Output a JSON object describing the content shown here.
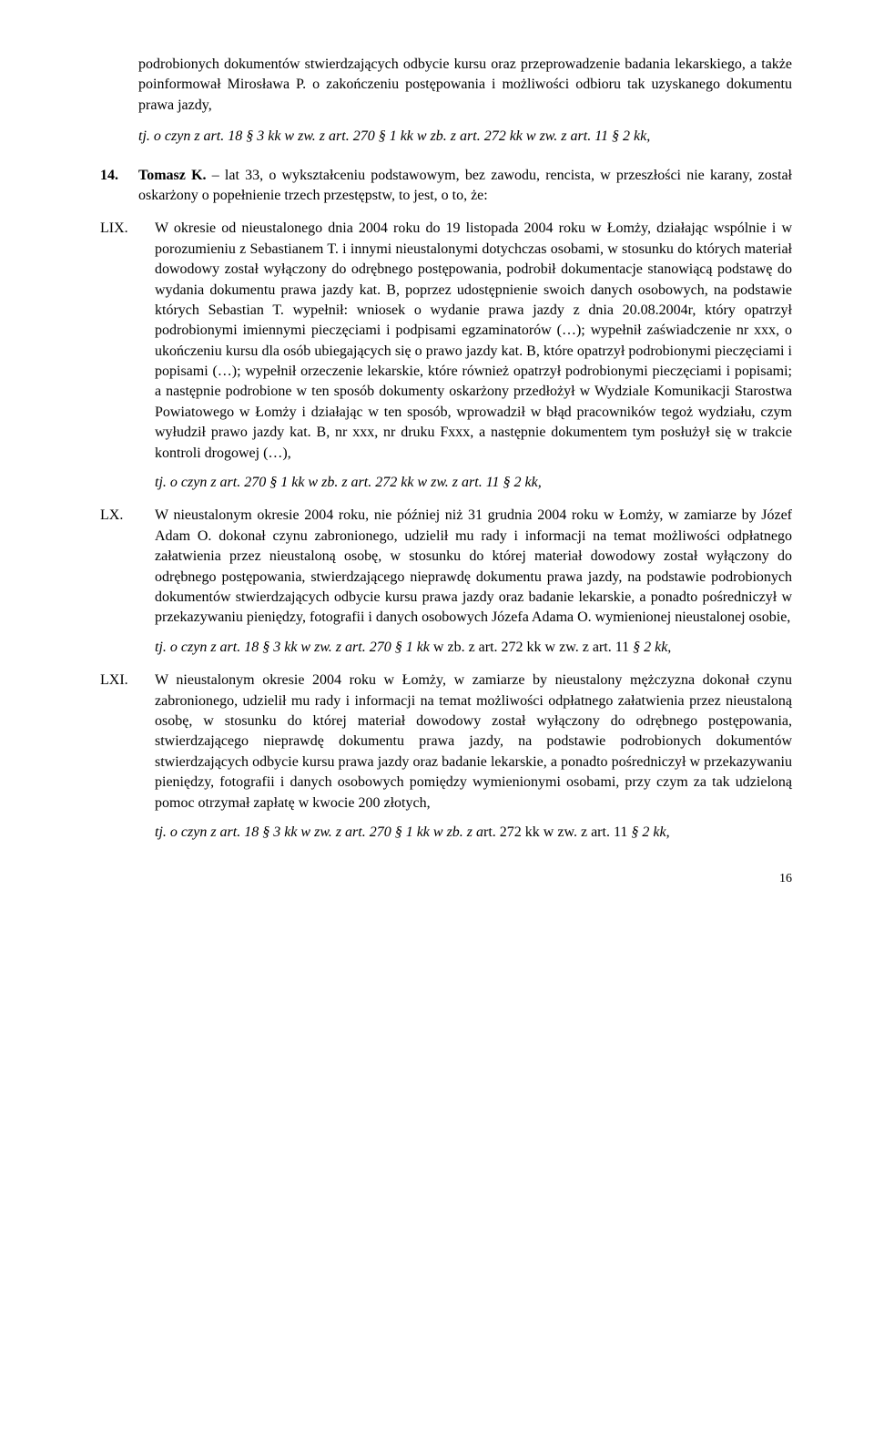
{
  "top_para": "podrobionych dokumentów stwierdzających odbycie kursu oraz przeprowadzenie badania lekarskiego, a także poinformował Mirosława P. o zakończeniu postępowania i możliwości odbioru tak uzyskanego dokumentu prawa jazdy,",
  "top_tj": "tj. o czyn z art. 18 § 3 kk w zw. z art. 270 § 1 kk w zb. z art. 272 kk w zw. z art. 11 § 2 kk,",
  "item14_num": "14.",
  "item14_name": "Tomasz K.",
  "item14_rest": " – lat 33, o wykształceniu podstawowym, bez zawodu, rencista, w przeszłości nie karany, został oskarżony o popełnienie trzech przestępstw, to jest, o to, że:",
  "lix_label": "LIX.",
  "lix_text": "W okresie od nieustalonego dnia 2004 roku do 19 listopada 2004 roku w Łomży, działając wspólnie i w porozumieniu z Sebastianem T. i innymi nieustalonymi dotychczas osobami, w stosunku do których materiał dowodowy został wyłączony do odrębnego postępowania, podrobił dokumentacje stanowiącą podstawę do wydania dokumentu prawa jazdy kat. B, poprzez udostępnienie swoich danych osobowych, na podstawie których Sebastian T. wypełnił: wniosek o wydanie prawa jazdy z dnia 20.08.2004r, który opatrzył podrobionymi imiennymi pieczęciami i podpisami egzaminatorów (…); wypełnił zaświadczenie nr xxx, o ukończeniu kursu dla osób ubiegających się o prawo jazdy kat. B, które opatrzył podrobionymi pieczęciami i popisami (…); wypełnił orzeczenie lekarskie, które również opatrzył podrobionymi pieczęciami i popisami; a następnie podrobione w ten sposób dokumenty oskarżony przedłożył w Wydziale Komunikacji Starostwa Powiatowego w Łomży i działając w ten sposób, wprowadził w błąd pracowników tegoż wydziału, czym wyłudził prawo jazdy kat. B, nr xxx, nr druku Fxxx, a następnie dokumentem tym posłużył się w trakcie kontroli drogowej (…),",
  "lix_tj": "tj. o czyn z art. 270 § 1 kk w zb. z  art. 272 kk w zw. z art. 11 § 2 kk,",
  "lx_label": "LX.",
  "lx_text": "W nieustalonym okresie 2004 roku, nie później niż 31 grudnia 2004 roku w Łomży, w zamiarze by Józef Adam O. dokonał czynu zabronionego, udzielił mu rady i informacji na temat możliwości odpłatnego załatwienia przez nieustaloną osobę, w stosunku do której materiał dowodowy został wyłączony do odrębnego postępowania, stwierdzającego nieprawdę dokumentu prawa jazdy, na podstawie podrobionych dokumentów stwierdzających odbycie kursu prawa jazdy oraz badanie lekarskie, a ponadto pośredniczył w przekazywaniu pieniędzy, fotografii i danych osobowych Józefa Adama O. wymienionej nieustalonej osobie,",
  "lx_tj_prefix": "tj. o czyn z art. 18 § 3 kk w zw. z art. 270 § 1 kk ",
  "lx_tj_mid": "w zb. z art. 272 kk w zw. z art. 11 ",
  "lx_tj_suffix": "§ 2 kk,",
  "lxi_label": "LXI.",
  "lxi_text": "W nieustalonym okresie 2004 roku w Łomży, w zamiarze by nieustalony mężczyzna dokonał czynu zabronionego, udzielił mu rady i informacji na temat możliwości odpłatnego załatwienia przez nieustaloną osobę, w stosunku do której materiał dowodowy został wyłączony do odrębnego postępowania, stwierdzającego nieprawdę dokumentu prawa jazdy, na podstawie podrobionych dokumentów stwierdzających odbycie kursu prawa jazdy oraz badanie lekarskie, a ponadto pośredniczył w przekazywaniu pieniędzy, fotografii i danych osobowych pomiędzy wymienionymi osobami, przy czym za tak udzieloną pomoc otrzymał zapłatę w kwocie 200 złotych,",
  "lxi_tj_prefix": "tj. o czyn z art. 18 § 3 kk w zw. z art. 270 § 1 kk w zb. z a",
  "lxi_tj_mid": "rt. 272 kk w zw. z art. 11 ",
  "lxi_tj_suffix": "§ 2 kk,",
  "page_number": "16"
}
